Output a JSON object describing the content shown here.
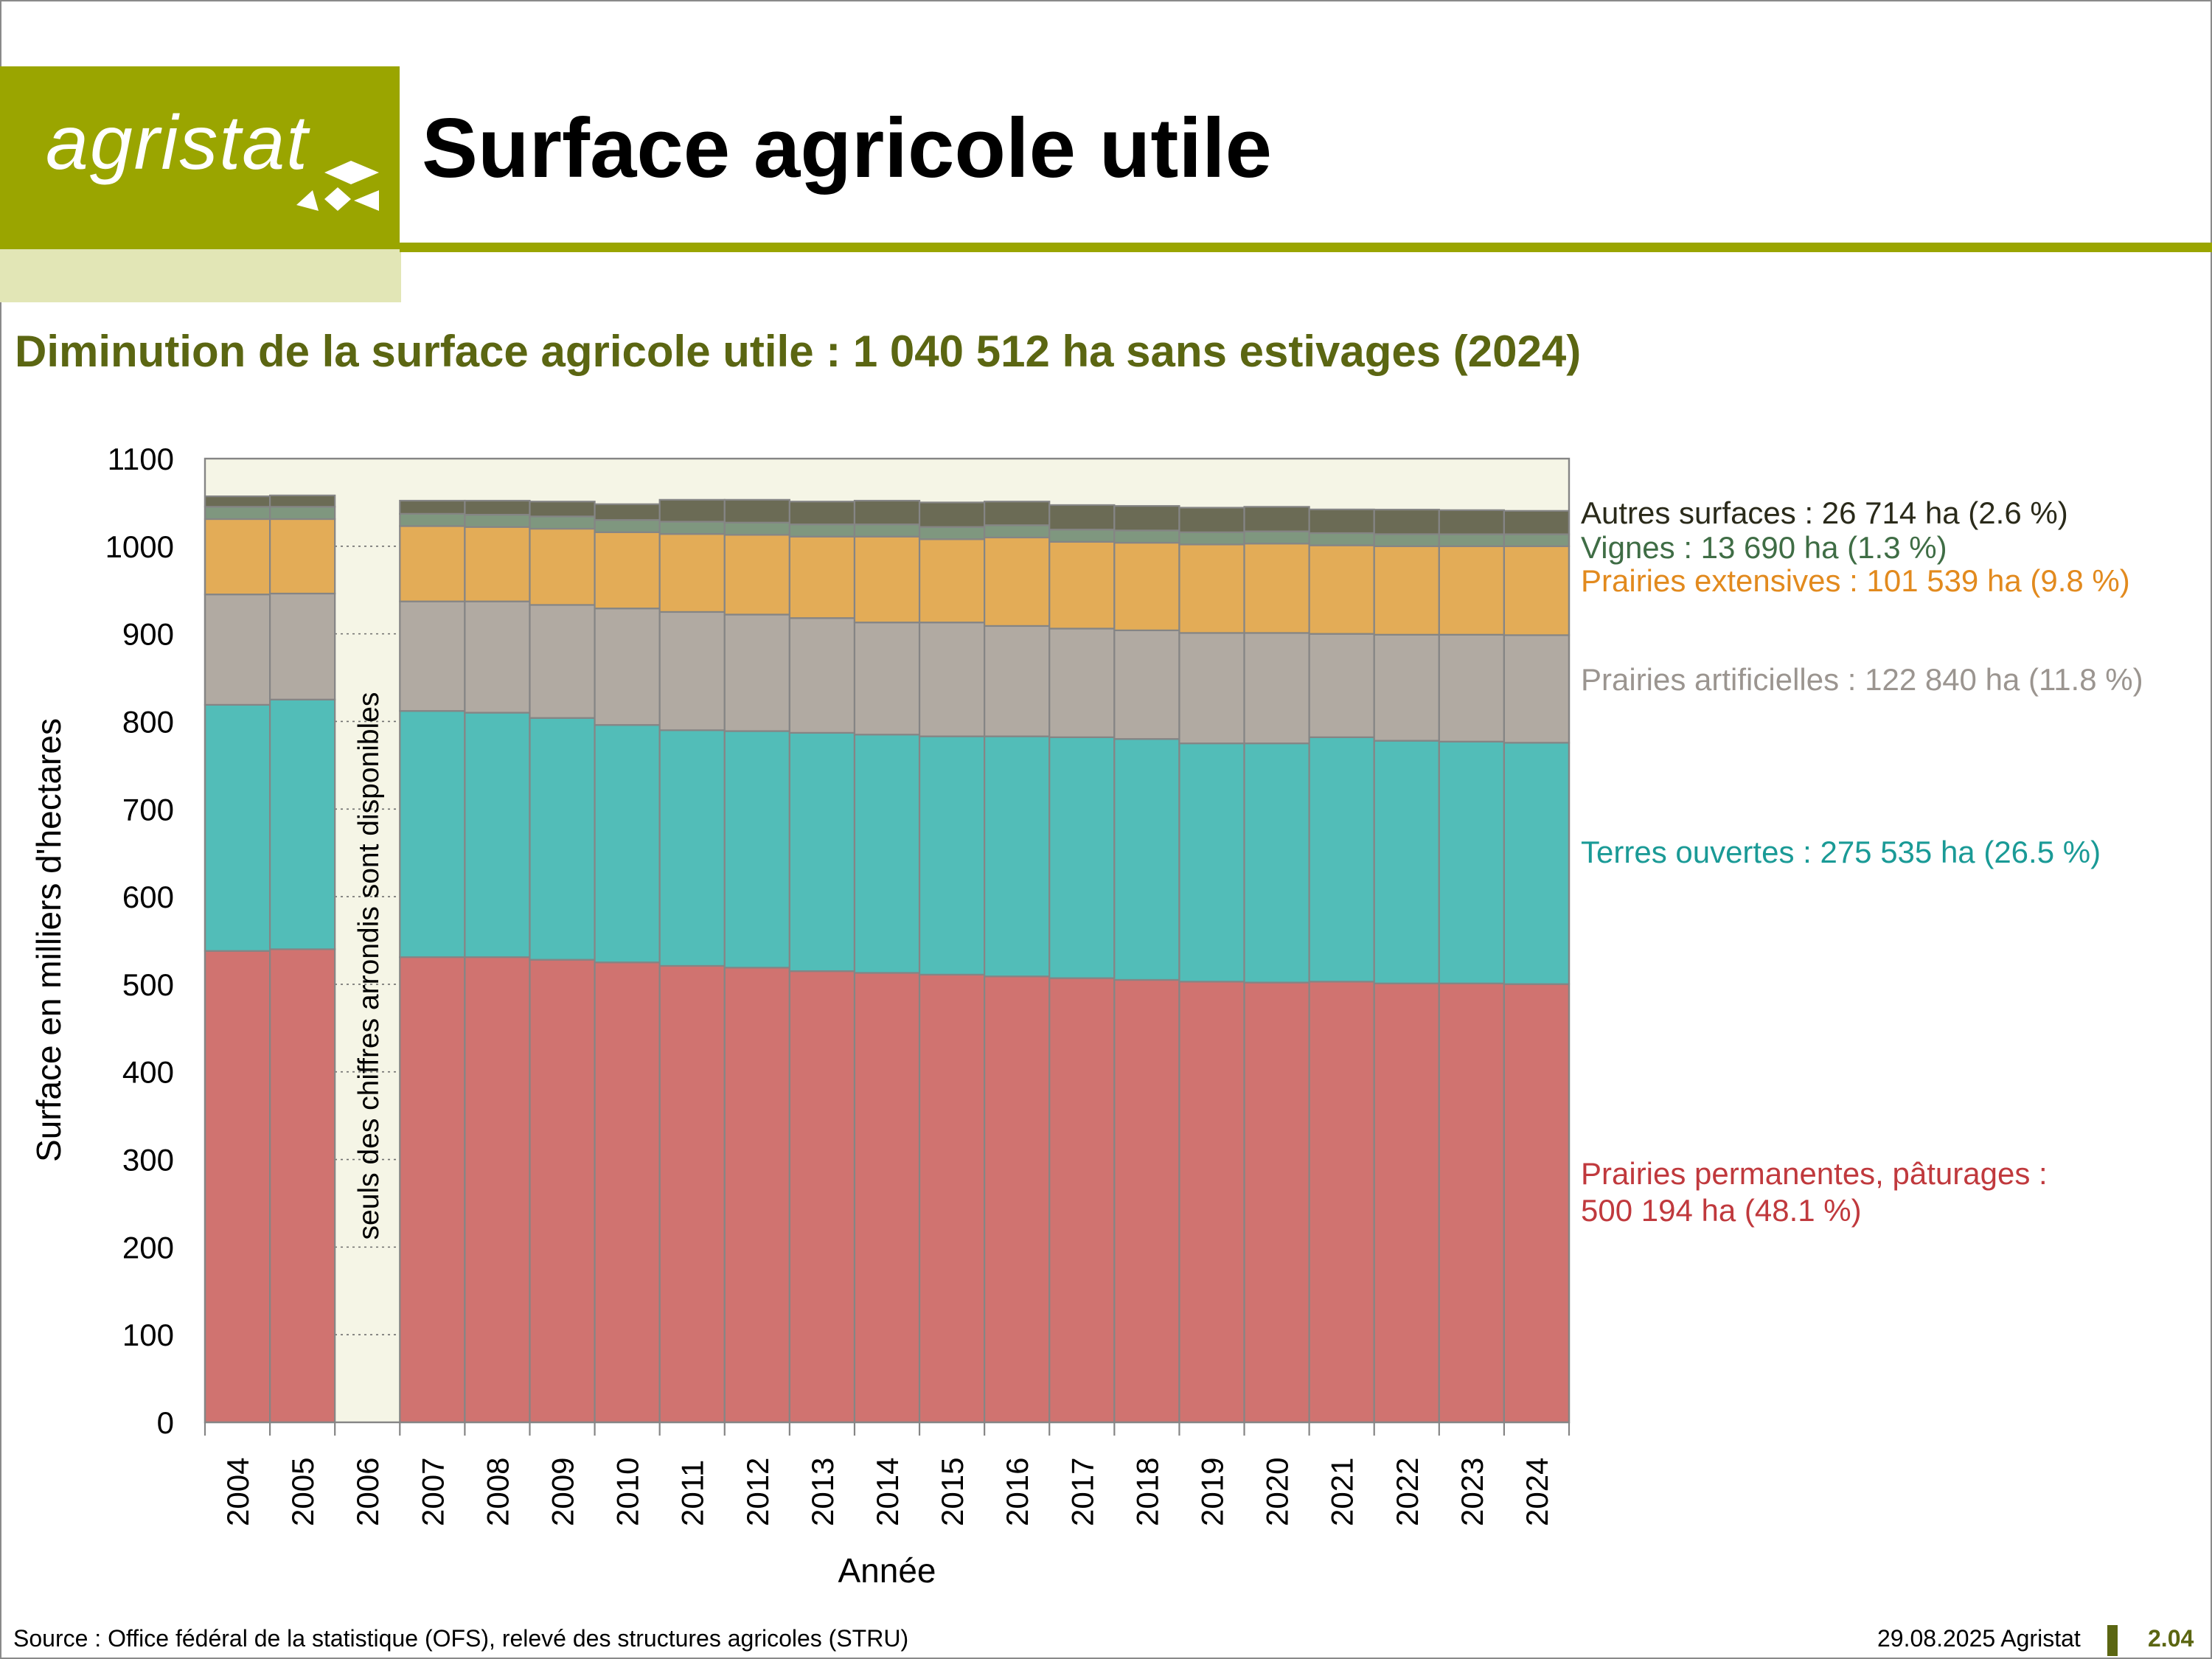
{
  "header": {
    "logo_text": "agristat",
    "title": "Surface agricole utile"
  },
  "subtitle": "Diminution de la surface agricole utile : 1 040 512 ha sans estivages (2024)",
  "footer": {
    "source": "Source : Office fédéral de la statistique (OFS), relevé des structures agricoles (STRU)",
    "date": "29.08.2025 Agristat",
    "page": "2.04"
  },
  "colors": {
    "brand": "#9aa500",
    "brand_light": "#e2e6b6",
    "subtitle": "#5b6612",
    "plot_bg": "#f5f5e6"
  },
  "chart_data": {
    "type": "bar",
    "stacked": true,
    "xlabel": "Année",
    "ylabel": "Surface en milliers d'hectares",
    "ylim": [
      0,
      1100
    ],
    "yticks": [
      "0",
      "100",
      "200",
      "300",
      "400",
      "500",
      "600",
      "700",
      "800",
      "900",
      "1000",
      "1100"
    ],
    "grid": "horizontal dotted",
    "categories": [
      "2004",
      "2005",
      "2006",
      "2007",
      "2008",
      "2009",
      "2010",
      "2011",
      "2012",
      "2013",
      "2014",
      "2015",
      "2016",
      "2017",
      "2018",
      "2019",
      "2020",
      "2021",
      "2022",
      "2023",
      "2024"
    ],
    "gap_note": "seuls des chiffres arrondis sont disponibles",
    "series": [
      {
        "name": "Prairies permanentes, pâturages",
        "color": "#d07370",
        "label_color": "#c0393d",
        "label_lines": [
          "Prairies permanentes, pâturages :",
          "500 194 ha (48.1 %)"
        ],
        "values": [
          538,
          540,
          null,
          531,
          531,
          528,
          525,
          521,
          519,
          515,
          513,
          511,
          509,
          507,
          505,
          503,
          502,
          503,
          501,
          501,
          500.2
        ]
      },
      {
        "name": "Terres ouvertes",
        "color": "#52bdb8",
        "label_color": "#1a9a96",
        "label_lines": [
          "Terres ouvertes : 275 535 ha (26.5 %)"
        ],
        "values": [
          281,
          285,
          null,
          281,
          279,
          276,
          271,
          269,
          270,
          272,
          272,
          272,
          274,
          275,
          275,
          272,
          273,
          279,
          277,
          276,
          275.5
        ]
      },
      {
        "name": "Prairies artificielles",
        "color": "#b1aaa2",
        "label_color": "#9b9590",
        "label_lines": [
          "Prairies artificielles : 122 840 ha (11.8 %)"
        ],
        "values": [
          126,
          121,
          null,
          125,
          127,
          129,
          133,
          135,
          133,
          131,
          128,
          130,
          126,
          124,
          124,
          126,
          126,
          118,
          121,
          122,
          122.8
        ]
      },
      {
        "name": "Prairies extensives",
        "color": "#e3ac57",
        "label_color": "#e28a1e",
        "label_lines": [
          "Prairies extensives : 101 539 ha (9.8 %)"
        ],
        "values": [
          86,
          85,
          null,
          86,
          85,
          87,
          87,
          89,
          91,
          93,
          98,
          95,
          101,
          99,
          100,
          101,
          102,
          101,
          101,
          101,
          101.5
        ]
      },
      {
        "name": "Vignes",
        "color": "#7f977f",
        "label_color": "#3f6d45",
        "label_lines": [
          "Vignes : 13 690 ha (1.3 %)"
        ],
        "values": [
          14,
          14,
          null,
          14,
          14,
          14,
          14,
          14,
          14,
          14,
          14,
          14,
          14,
          14,
          14,
          14,
          14,
          14,
          13.8,
          13.7,
          13.7
        ]
      },
      {
        "name": "Autres surfaces",
        "color": "#6b6b55",
        "label_color": "#2a2a1a",
        "label_lines": [
          "Autres surfaces : 26 714 ha (2.6 %)"
        ],
        "values": [
          12,
          13,
          null,
          15,
          16,
          17,
          18,
          25,
          26,
          26,
          27,
          28,
          27,
          28,
          28,
          28,
          28,
          27,
          28,
          27.5,
          26.7
        ]
      }
    ]
  }
}
